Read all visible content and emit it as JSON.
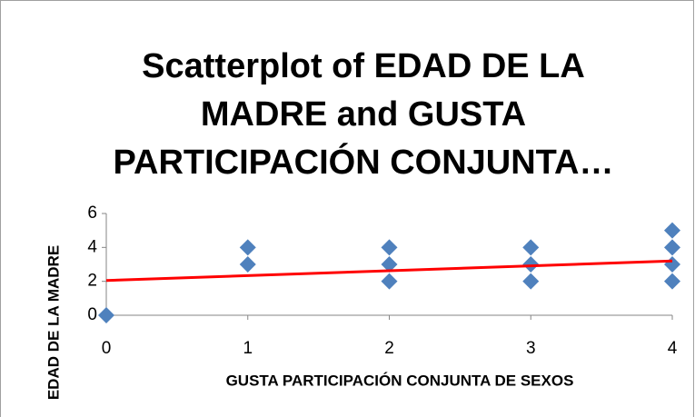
{
  "chart_data": {
    "type": "scatter",
    "title": [
      "Scatterplot of EDAD DE LA",
      "MADRE and GUSTA",
      "PARTICIPACIÓN CONJUNTA…"
    ],
    "x_label": "GUSTA PARTICIPACIÓN CONJUNTA DE SEXOS",
    "y_label": "EDAD DE LA MADRE",
    "xlim": [
      0,
      4
    ],
    "ylim": [
      0,
      6
    ],
    "xticks": [
      0,
      1,
      2,
      3,
      4
    ],
    "yticks": [
      0,
      2,
      4,
      6
    ],
    "series": [
      {
        "color": "#4f81bd",
        "x": [
          0,
          1,
          1,
          2,
          2,
          2,
          3,
          3,
          3,
          4,
          4,
          4,
          4
        ],
        "values": [
          0,
          4,
          3,
          4,
          3,
          2,
          4,
          3,
          2,
          5,
          4,
          3,
          2
        ]
      }
    ],
    "trendline": {
      "color": "#ff0000",
      "x": [
        0,
        4
      ],
      "values": [
        2.05,
        3.2
      ]
    }
  }
}
